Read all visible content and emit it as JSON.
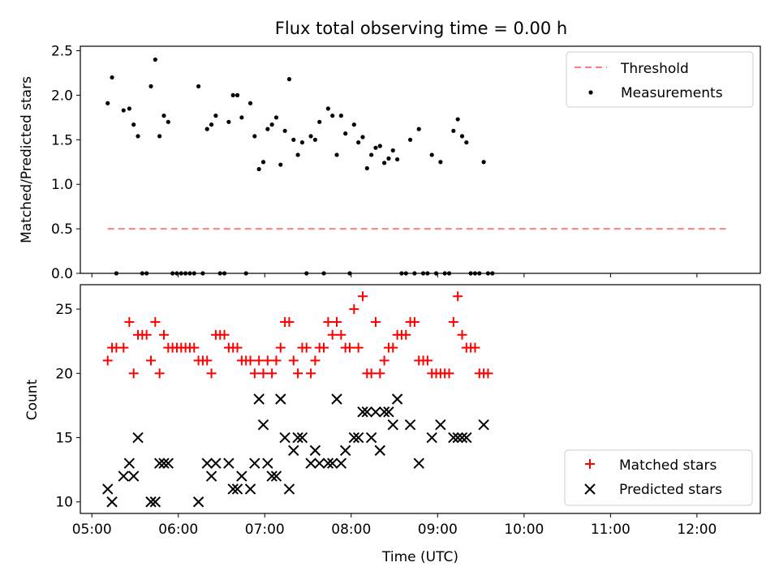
{
  "figure_title": "Flux total observing time = 0.00 h",
  "colors": {
    "threshold": "#ff7f7f",
    "measurement": "#000000",
    "matched": "#ff0000",
    "predicted": "#000000"
  },
  "chart_data": [
    {
      "type": "scatter",
      "title": "Flux total observing time = 0.00 h",
      "xlabel": "",
      "ylabel": "Matched/Predicted stars",
      "xlim": [
        "04:52",
        "12:44"
      ],
      "ylim": [
        0,
        2.55
      ],
      "y_ticks": [
        "0.0",
        "0.5",
        "1.0",
        "1.5",
        "2.0",
        "2.5"
      ],
      "legend_position": "upper right",
      "series": [
        {
          "name": "Threshold",
          "style": "dashed-line",
          "points": [
            [
              "05:11",
              0.5
            ],
            [
              "12:20",
              0.5
            ]
          ]
        },
        {
          "name": "Measurements",
          "style": "dot",
          "points": [
            [
              "05:11",
              1.91
            ],
            [
              "05:14",
              2.2
            ],
            [
              "05:17",
              0.0
            ],
            [
              "05:22",
              1.83
            ],
            [
              "05:26",
              1.85
            ],
            [
              "05:29",
              1.67
            ],
            [
              "05:32",
              1.54
            ],
            [
              "05:35",
              0.0
            ],
            [
              "05:38",
              0.0
            ],
            [
              "05:41",
              2.1
            ],
            [
              "05:44",
              2.4
            ],
            [
              "05:47",
              1.54
            ],
            [
              "05:50",
              1.77
            ],
            [
              "05:53",
              1.7
            ],
            [
              "05:56",
              0.0
            ],
            [
              "05:59",
              0.0
            ],
            [
              "06:02",
              0.0
            ],
            [
              "06:05",
              0.0
            ],
            [
              "06:08",
              0.0
            ],
            [
              "06:11",
              0.0
            ],
            [
              "06:14",
              2.1
            ],
            [
              "06:17",
              0.0
            ],
            [
              "06:20",
              1.62
            ],
            [
              "06:23",
              1.67
            ],
            [
              "06:26",
              1.77
            ],
            [
              "06:29",
              0.0
            ],
            [
              "06:32",
              0.0
            ],
            [
              "06:35",
              1.7
            ],
            [
              "06:38",
              2.0
            ],
            [
              "06:41",
              2.0
            ],
            [
              "06:44",
              1.75
            ],
            [
              "06:47",
              0.0
            ],
            [
              "06:50",
              1.91
            ],
            [
              "06:53",
              1.54
            ],
            [
              "06:56",
              1.17
            ],
            [
              "06:59",
              1.25
            ],
            [
              "07:02",
              1.62
            ],
            [
              "07:05",
              1.67
            ],
            [
              "07:08",
              1.75
            ],
            [
              "07:11",
              1.22
            ],
            [
              "07:14",
              1.6
            ],
            [
              "07:17",
              2.18
            ],
            [
              "07:20",
              1.5
            ],
            [
              "07:23",
              1.33
            ],
            [
              "07:26",
              1.47
            ],
            [
              "07:29",
              0.0
            ],
            [
              "07:32",
              1.54
            ],
            [
              "07:35",
              1.5
            ],
            [
              "07:38",
              1.7
            ],
            [
              "07:41",
              0.0
            ],
            [
              "07:44",
              1.85
            ],
            [
              "07:47",
              1.77
            ],
            [
              "07:50",
              1.33
            ],
            [
              "07:53",
              1.77
            ],
            [
              "07:56",
              1.57
            ],
            [
              "07:59",
              0.0
            ],
            [
              "08:02",
              1.67
            ],
            [
              "08:05",
              1.47
            ],
            [
              "08:08",
              1.53
            ],
            [
              "08:11",
              1.18
            ],
            [
              "08:14",
              1.33
            ],
            [
              "08:17",
              1.41
            ],
            [
              "08:20",
              1.43
            ],
            [
              "08:23",
              1.24
            ],
            [
              "08:26",
              1.29
            ],
            [
              "08:29",
              1.38
            ],
            [
              "08:32",
              1.28
            ],
            [
              "08:35",
              0.0
            ],
            [
              "08:38",
              0.0
            ],
            [
              "08:41",
              1.5
            ],
            [
              "08:44",
              0.0
            ],
            [
              "08:47",
              1.62
            ],
            [
              "08:50",
              0.0
            ],
            [
              "08:53",
              0.0
            ],
            [
              "08:56",
              1.33
            ],
            [
              "08:59",
              0.0
            ],
            [
              "09:02",
              1.25
            ],
            [
              "09:05",
              0.0
            ],
            [
              "09:08",
              0.0
            ],
            [
              "09:11",
              1.6
            ],
            [
              "09:14",
              1.73
            ],
            [
              "09:17",
              1.54
            ],
            [
              "09:20",
              1.47
            ],
            [
              "09:23",
              0.0
            ],
            [
              "09:26",
              0.0
            ],
            [
              "09:29",
              0.0
            ],
            [
              "09:32",
              1.25
            ],
            [
              "09:35",
              0.0
            ],
            [
              "09:38",
              0.0
            ]
          ]
        }
      ]
    },
    {
      "type": "scatter",
      "title": "",
      "xlabel": "Time (UTC)",
      "ylabel": "Count",
      "xlim": [
        "04:52",
        "12:44"
      ],
      "ylim": [
        9.1,
        26.9
      ],
      "x_ticks": [
        "05:00",
        "06:00",
        "07:00",
        "08:00",
        "09:00",
        "10:00",
        "11:00",
        "12:00"
      ],
      "y_ticks": [
        "10",
        "15",
        "20",
        "25"
      ],
      "legend_position": "lower right",
      "series": [
        {
          "name": "Matched stars",
          "style": "plus",
          "points": [
            [
              "05:11",
              21
            ],
            [
              "05:14",
              22
            ],
            [
              "05:17",
              22
            ],
            [
              "05:22",
              22
            ],
            [
              "05:26",
              24
            ],
            [
              "05:29",
              20
            ],
            [
              "05:32",
              23
            ],
            [
              "05:35",
              23
            ],
            [
              "05:38",
              23
            ],
            [
              "05:41",
              21
            ],
            [
              "05:44",
              24
            ],
            [
              "05:47",
              20
            ],
            [
              "05:50",
              23
            ],
            [
              "05:53",
              22
            ],
            [
              "05:56",
              22
            ],
            [
              "05:59",
              22
            ],
            [
              "06:02",
              22
            ],
            [
              "06:05",
              22
            ],
            [
              "06:08",
              22
            ],
            [
              "06:11",
              22
            ],
            [
              "06:14",
              21
            ],
            [
              "06:17",
              21
            ],
            [
              "06:20",
              21
            ],
            [
              "06:23",
              20
            ],
            [
              "06:26",
              23
            ],
            [
              "06:29",
              23
            ],
            [
              "06:32",
              23
            ],
            [
              "06:35",
              22
            ],
            [
              "06:38",
              22
            ],
            [
              "06:41",
              22
            ],
            [
              "06:44",
              21
            ],
            [
              "06:47",
              21
            ],
            [
              "06:50",
              21
            ],
            [
              "06:53",
              20
            ],
            [
              "06:56",
              21
            ],
            [
              "06:59",
              20
            ],
            [
              "07:02",
              21
            ],
            [
              "07:05",
              20
            ],
            [
              "07:08",
              21
            ],
            [
              "07:11",
              22
            ],
            [
              "07:14",
              24
            ],
            [
              "07:17",
              24
            ],
            [
              "07:20",
              21
            ],
            [
              "07:23",
              20
            ],
            [
              "07:26",
              22
            ],
            [
              "07:29",
              22
            ],
            [
              "07:32",
              20
            ],
            [
              "07:35",
              21
            ],
            [
              "07:38",
              22
            ],
            [
              "07:41",
              22
            ],
            [
              "07:44",
              24
            ],
            [
              "07:47",
              23
            ],
            [
              "07:50",
              24
            ],
            [
              "07:53",
              23
            ],
            [
              "07:56",
              22
            ],
            [
              "07:59",
              22
            ],
            [
              "08:02",
              25
            ],
            [
              "08:05",
              22
            ],
            [
              "08:08",
              26
            ],
            [
              "08:11",
              20
            ],
            [
              "08:14",
              20
            ],
            [
              "08:17",
              24
            ],
            [
              "08:20",
              20
            ],
            [
              "08:23",
              21
            ],
            [
              "08:26",
              22
            ],
            [
              "08:29",
              22
            ],
            [
              "08:32",
              23
            ],
            [
              "08:35",
              23
            ],
            [
              "08:38",
              23
            ],
            [
              "08:41",
              24
            ],
            [
              "08:44",
              24
            ],
            [
              "08:47",
              21
            ],
            [
              "08:50",
              21
            ],
            [
              "08:53",
              21
            ],
            [
              "08:56",
              20
            ],
            [
              "08:59",
              20
            ],
            [
              "09:02",
              20
            ],
            [
              "09:05",
              20
            ],
            [
              "09:08",
              20
            ],
            [
              "09:11",
              24
            ],
            [
              "09:14",
              26
            ],
            [
              "09:17",
              23
            ],
            [
              "09:20",
              22
            ],
            [
              "09:23",
              22
            ],
            [
              "09:26",
              22
            ],
            [
              "09:29",
              20
            ],
            [
              "09:32",
              20
            ],
            [
              "09:35",
              20
            ]
          ]
        },
        {
          "name": "Predicted stars",
          "style": "x",
          "points": [
            [
              "05:11",
              11
            ],
            [
              "05:14",
              10
            ],
            [
              "05:22",
              12
            ],
            [
              "05:26",
              13
            ],
            [
              "05:29",
              12
            ],
            [
              "05:32",
              15
            ],
            [
              "05:41",
              10
            ],
            [
              "05:44",
              10
            ],
            [
              "05:47",
              13
            ],
            [
              "05:50",
              13
            ],
            [
              "05:53",
              13
            ],
            [
              "06:14",
              10
            ],
            [
              "06:20",
              13
            ],
            [
              "06:23",
              12
            ],
            [
              "06:26",
              13
            ],
            [
              "06:35",
              13
            ],
            [
              "06:38",
              11
            ],
            [
              "06:41",
              11
            ],
            [
              "06:44",
              12
            ],
            [
              "06:50",
              11
            ],
            [
              "06:53",
              13
            ],
            [
              "06:56",
              18
            ],
            [
              "06:59",
              16
            ],
            [
              "07:02",
              13
            ],
            [
              "07:05",
              12
            ],
            [
              "07:08",
              12
            ],
            [
              "07:11",
              18
            ],
            [
              "07:14",
              15
            ],
            [
              "07:17",
              11
            ],
            [
              "07:20",
              14
            ],
            [
              "07:23",
              15
            ],
            [
              "07:26",
              15
            ],
            [
              "07:32",
              13
            ],
            [
              "07:35",
              14
            ],
            [
              "07:38",
              13
            ],
            [
              "07:44",
              13
            ],
            [
              "07:47",
              13
            ],
            [
              "07:50",
              18
            ],
            [
              "07:53",
              13
            ],
            [
              "07:56",
              14
            ],
            [
              "08:02",
              15
            ],
            [
              "08:05",
              15
            ],
            [
              "08:08",
              17
            ],
            [
              "08:11",
              17
            ],
            [
              "08:14",
              15
            ],
            [
              "08:17",
              17
            ],
            [
              "08:20",
              14
            ],
            [
              "08:23",
              17
            ],
            [
              "08:26",
              17
            ],
            [
              "08:29",
              16
            ],
            [
              "08:32",
              18
            ],
            [
              "08:41",
              16
            ],
            [
              "08:47",
              13
            ],
            [
              "08:56",
              15
            ],
            [
              "09:02",
              16
            ],
            [
              "09:11",
              15
            ],
            [
              "09:14",
              15
            ],
            [
              "09:17",
              15
            ],
            [
              "09:20",
              15
            ],
            [
              "09:32",
              16
            ]
          ]
        }
      ]
    }
  ]
}
